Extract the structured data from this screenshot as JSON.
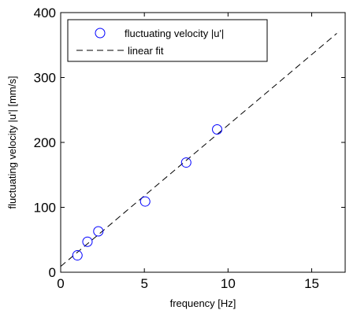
{
  "chart_data": {
    "type": "scatter",
    "xlabel": "frequency [Hz]",
    "ylabel": "fluctuating velocity |u'| [mm/s]",
    "xlim": [
      0,
      17
    ],
    "ylim": [
      0,
      400
    ],
    "xticks": [
      "0",
      "5",
      "10",
      "15"
    ],
    "yticks": [
      "0",
      "100",
      "200",
      "300",
      "400"
    ],
    "xtick_values": [
      0,
      5,
      10,
      15
    ],
    "ytick_values": [
      0,
      100,
      200,
      300,
      400
    ],
    "grid": false,
    "legend_position": "top-left",
    "series": [
      {
        "name": "fluctuating velocity |u'|",
        "kind": "scatter",
        "marker": "open-circle",
        "color": "#0000ff",
        "x": [
          1.0,
          1.6,
          2.25,
          5.05,
          7.5,
          9.35
        ],
        "y": [
          26,
          47,
          63,
          109,
          169,
          220
        ]
      },
      {
        "name": "linear fit",
        "kind": "line",
        "style": "dashed",
        "color": "#000000",
        "x": [
          0,
          16.5
        ],
        "y": [
          9,
          368
        ]
      }
    ]
  }
}
